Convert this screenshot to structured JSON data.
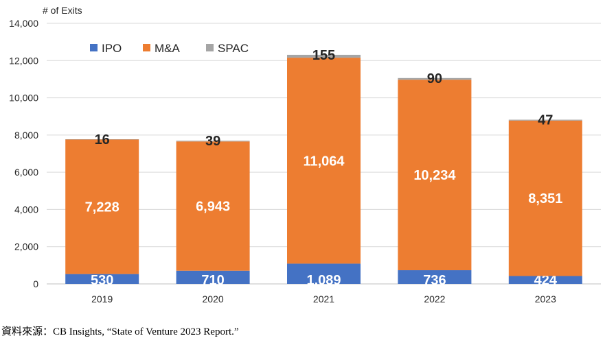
{
  "chart_data": {
    "type": "bar",
    "stacked": true,
    "ylabel": "# of Exits",
    "ylim": [
      0,
      14000
    ],
    "yticks": [
      0,
      2000,
      4000,
      6000,
      8000,
      10000,
      12000,
      14000
    ],
    "ytick_labels": [
      "0",
      "2,000",
      "4,000",
      "6,000",
      "8,000",
      "10,000",
      "12,000",
      "14,000"
    ],
    "categories": [
      "2019",
      "2020",
      "2021",
      "2022",
      "2023"
    ],
    "series": [
      {
        "name": "IPO",
        "color": "#4472C4",
        "label_color": "#ffffff",
        "values": [
          530,
          710,
          1089,
          736,
          424
        ],
        "labels": [
          "530",
          "710",
          "1,089",
          "736",
          "424"
        ]
      },
      {
        "name": "M&A",
        "color": "#ED7D31",
        "label_color": "#ffffff",
        "values": [
          7228,
          6943,
          11064,
          10234,
          8351
        ],
        "labels": [
          "7,228",
          "6,943",
          "11,064",
          "10,234",
          "8,351"
        ]
      },
      {
        "name": "SPAC",
        "color": "#A5A5A5",
        "label_color": "#262626",
        "values": [
          16,
          39,
          155,
          90,
          47
        ],
        "labels": [
          "16",
          "39",
          "155",
          "90",
          "47"
        ]
      }
    ],
    "grid": true,
    "legend_position": "top-left"
  },
  "source_note": "資料來源：CB Insights, “State of Venture 2023 Report.”"
}
